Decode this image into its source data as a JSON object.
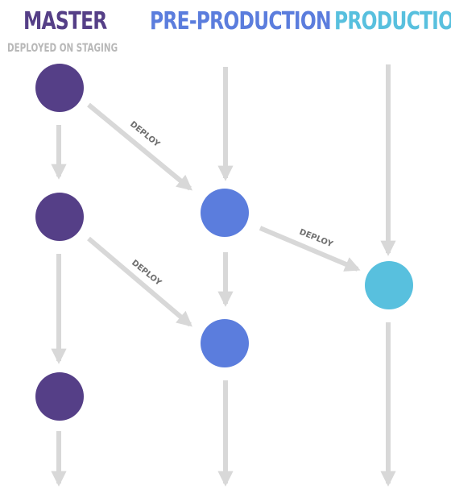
{
  "columns": {
    "master": {
      "title": "MASTER",
      "subtitle": "DEPLOYED ON STAGING"
    },
    "preproduction": {
      "title": "PRE-PRODUCTION"
    },
    "production": {
      "title": "PRODUCTION"
    }
  },
  "deploy_label": "DEPLOY",
  "colors": {
    "master": "#553f87",
    "preproduction": "#5b7ddd",
    "production": "#58c0de",
    "subtitle": "#b8b8b8",
    "arrow": "#d8d8d8"
  }
}
